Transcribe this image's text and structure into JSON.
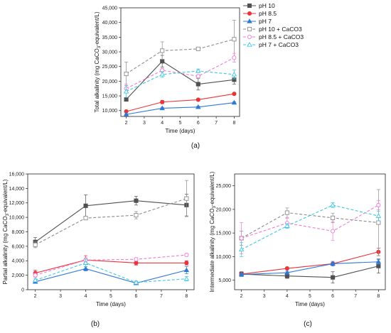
{
  "chart_data": [
    {
      "type": "line",
      "panel_label": "(a)",
      "xlabel": "Time (days)",
      "ylabel": "Total alkalinity (mg CaCO",
      "ylabel_sub": "3",
      "ylabel_end": "-equivalent/L)",
      "xlim": [
        1.7,
        8.3
      ],
      "ylim": [
        8000,
        45000
      ],
      "xticks": [
        2,
        3,
        4,
        5,
        6,
        7,
        8
      ],
      "yticks": [
        "10,000",
        "15,000",
        "20,000",
        "25,000",
        "30,000",
        "35,000",
        "40,000",
        "45,000"
      ],
      "ytick_values": [
        10000,
        15000,
        20000,
        25000,
        30000,
        35000,
        40000,
        45000
      ],
      "x": [
        2,
        4,
        6,
        8
      ],
      "legend_position": "top-right",
      "series": [
        {
          "name": "pH 10",
          "color": "#505050",
          "dashed": false,
          "marker": "square",
          "values": [
            13800,
            26800,
            19000,
            20500
          ],
          "errors": [
            500,
            2000,
            2000,
            1500
          ]
        },
        {
          "name": "pH 8.5",
          "color": "#e8343b",
          "dashed": false,
          "marker": "circle",
          "values": [
            9700,
            12900,
            13700,
            15700
          ],
          "errors": [
            400,
            600,
            400,
            400
          ]
        },
        {
          "name": "pH 7",
          "color": "#2f78d6",
          "dashed": false,
          "marker": "triangle",
          "values": [
            8700,
            10800,
            11200,
            12700
          ],
          "errors": [
            200,
            300,
            300,
            300
          ]
        },
        {
          "name": "pH 10 + CaCO3",
          "color": "#8c8c8c",
          "dashed": true,
          "marker": "square-open",
          "values": [
            22500,
            30400,
            31000,
            34300
          ],
          "errors": [
            4000,
            3000,
            400,
            6500
          ]
        },
        {
          "name": "pH 8.5 + CaCO3",
          "color": "#f07ad2",
          "dashed": true,
          "marker": "circle-open",
          "values": [
            17500,
            23700,
            21700,
            28000
          ],
          "errors": [
            1500,
            600,
            500,
            1500
          ]
        },
        {
          "name": "pH 7 + CaCO3",
          "color": "#3dc6e6",
          "dashed": true,
          "marker": "triangle-open",
          "values": [
            16500,
            22300,
            23500,
            22300
          ],
          "errors": [
            2000,
            1000,
            600,
            1500
          ]
        }
      ]
    },
    {
      "type": "line",
      "panel_label": "(b)",
      "xlabel": "Time (days)",
      "ylabel": "Partial alkalinity (mg CaCO",
      "ylabel_sub": "3",
      "ylabel_end": "-equivalent/L)",
      "xlim": [
        1.7,
        8.3
      ],
      "ylim": [
        0,
        16000
      ],
      "xticks": [
        2,
        3,
        4,
        5,
        6,
        7,
        8
      ],
      "yticks": [
        "0",
        "2,000",
        "4,000",
        "6,000",
        "8,000",
        "10,000",
        "12,000",
        "14,000",
        "16,000"
      ],
      "ytick_values": [
        0,
        2000,
        4000,
        6000,
        8000,
        10000,
        12000,
        14000,
        16000
      ],
      "x": [
        2,
        4,
        6,
        8
      ],
      "series": [
        {
          "color": "#505050",
          "dashed": false,
          "marker": "square",
          "values": [
            6600,
            11600,
            12300,
            11700
          ],
          "errors": [
            600,
            1500,
            600,
            1500
          ]
        },
        {
          "color": "#e8343b",
          "dashed": false,
          "marker": "circle",
          "values": [
            2300,
            4100,
            3700,
            3700
          ],
          "errors": [
            400,
            600,
            300,
            300
          ]
        },
        {
          "color": "#2f78d6",
          "dashed": false,
          "marker": "triangle",
          "values": [
            1100,
            2900,
            900,
            2700
          ],
          "errors": [
            200,
            300,
            200,
            500
          ]
        },
        {
          "color": "#8c8c8c",
          "dashed": true,
          "marker": "square-open",
          "values": [
            6200,
            9900,
            10300,
            12600
          ],
          "errors": [
            400,
            200,
            500,
            2500
          ]
        },
        {
          "color": "#f07ad2",
          "dashed": true,
          "marker": "circle-open",
          "values": [
            2000,
            4100,
            4200,
            4800
          ],
          "errors": [
            300,
            300,
            200,
            200
          ]
        },
        {
          "color": "#3dc6e6",
          "dashed": true,
          "marker": "triangle-open",
          "values": [
            1300,
            3700,
            1000,
            1500
          ],
          "errors": [
            200,
            500,
            200,
            300
          ]
        }
      ]
    },
    {
      "type": "line",
      "panel_label": "(c)",
      "xlabel": "Time (days)",
      "ylabel": "Intermediate alkalinity (mg CaCO",
      "ylabel_sub": "3",
      "ylabel_end": "-equivalent/L)",
      "xlim": [
        1.7,
        8.3
      ],
      "ylim": [
        3000,
        27500
      ],
      "xticks": [
        2,
        3,
        4,
        5,
        6,
        7,
        8
      ],
      "yticks": [
        "5,000",
        "10,000",
        "15,000",
        "20,000",
        "25,000"
      ],
      "ytick_values": [
        5000,
        10000,
        15000,
        20000,
        25000
      ],
      "x": [
        2,
        4,
        6,
        8
      ],
      "series": [
        {
          "color": "#505050",
          "dashed": false,
          "marker": "square",
          "values": [
            6300,
            5900,
            5600,
            8000
          ],
          "errors": [
            500,
            500,
            1200,
            1500
          ]
        },
        {
          "color": "#e8343b",
          "dashed": false,
          "marker": "circle",
          "values": [
            6300,
            7500,
            8500,
            11000
          ],
          "errors": [
            300,
            300,
            300,
            800
          ]
        },
        {
          "color": "#2f78d6",
          "dashed": false,
          "marker": "triangle",
          "values": [
            6200,
            6600,
            8500,
            8900
          ],
          "errors": [
            300,
            300,
            500,
            500
          ]
        },
        {
          "color": "#8c8c8c",
          "dashed": true,
          "marker": "square-open",
          "values": [
            13900,
            19300,
            18200,
            17200
          ],
          "errors": [
            1500,
            1000,
            1000,
            7000
          ]
        },
        {
          "color": "#f07ad2",
          "dashed": true,
          "marker": "circle-open",
          "values": [
            13900,
            17100,
            15400,
            20900
          ],
          "errors": [
            3300,
            1000,
            2000,
            1000
          ]
        },
        {
          "color": "#3dc6e6",
          "dashed": true,
          "marker": "triangle-open",
          "values": [
            11500,
            16500,
            20900,
            18600
          ],
          "errors": [
            1500,
            500,
            500,
            1000
          ]
        }
      ]
    }
  ]
}
